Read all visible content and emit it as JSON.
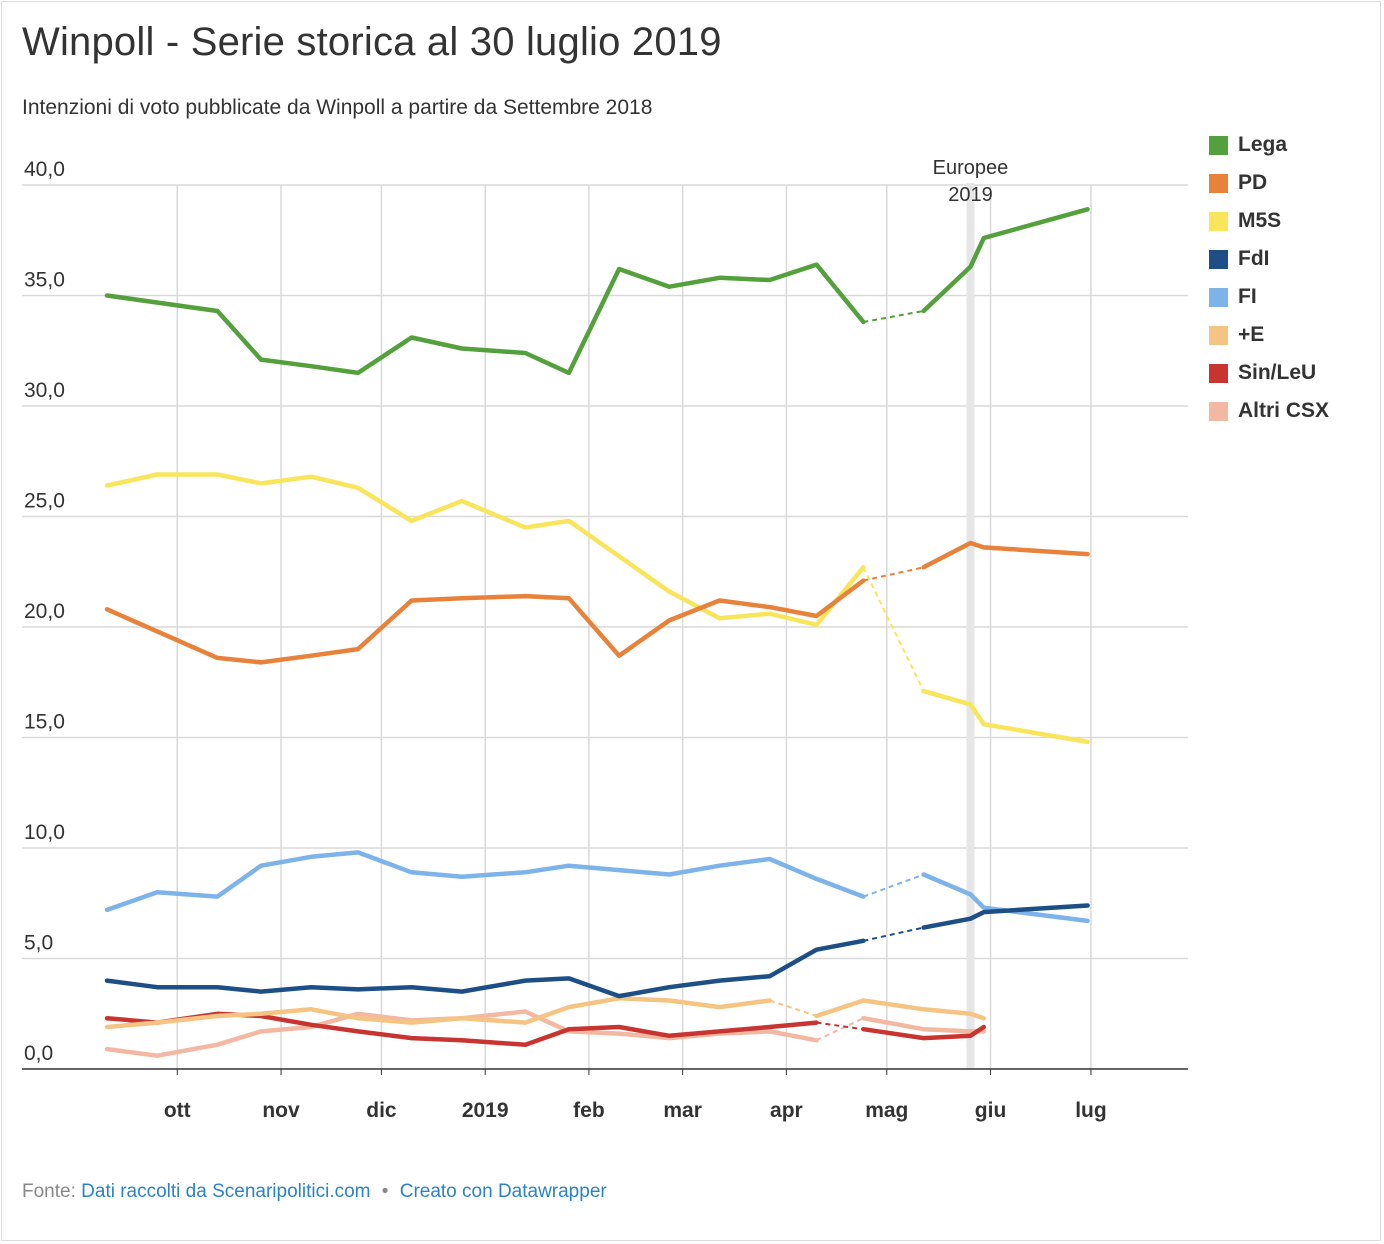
{
  "title": "Winpoll - Serie storica al 30 luglio 2019",
  "subtitle": "Intenzioni di voto pubblicate da Winpoll a partire da Settembre 2018",
  "footer": {
    "source_prefix": "Fonte:",
    "source_link": "Dati raccolti da Scenaripolitici.com",
    "separator": "•",
    "made_with": "Creato con Datawrapper"
  },
  "chart_data": {
    "type": "line",
    "title": "Winpoll - Serie storica al 30 luglio 2019",
    "subtitle": "Intenzioni di voto pubblicate da Winpoll a partire da Settembre 2018",
    "ylim": [
      0,
      40
    ],
    "yticks": [
      0,
      5,
      10,
      15,
      20,
      25,
      30,
      35,
      40
    ],
    "ytick_labels": [
      "0,0",
      "5,0",
      "10,0",
      "15,0",
      "20,0",
      "25,0",
      "30,0",
      "35,0",
      "40,0"
    ],
    "xlim": [
      "2018-09-10",
      "2019-07-30"
    ],
    "xticks": [
      {
        "date": "2018-10-01",
        "label": "ott"
      },
      {
        "date": "2018-11-01",
        "label": "nov"
      },
      {
        "date": "2018-12-01",
        "label": "dic"
      },
      {
        "date": "2019-01-01",
        "label": "2019"
      },
      {
        "date": "2019-02-01",
        "label": "feb"
      },
      {
        "date": "2019-03-01",
        "label": "mar"
      },
      {
        "date": "2019-04-01",
        "label": "apr"
      },
      {
        "date": "2019-05-01",
        "label": "mag"
      },
      {
        "date": "2019-06-01",
        "label": "giu"
      },
      {
        "date": "2019-07-01",
        "label": "lug"
      }
    ],
    "grid": true,
    "legend_position": "right",
    "annotation": {
      "label_line1": "Europee",
      "label_line2": "2019",
      "date": "2019-05-26"
    },
    "dates": [
      "2018-09-10",
      "2018-09-25",
      "2018-10-13",
      "2018-10-26",
      "2018-11-10",
      "2018-11-24",
      "2018-12-10",
      "2018-12-25",
      "2019-01-13",
      "2019-01-26",
      "2019-02-10",
      "2019-02-25",
      "2019-03-12",
      "2019-03-27",
      "2019-04-10",
      "2019-04-24",
      "2019-05-12",
      "2019-05-26",
      "2019-05-30",
      "2019-06-30",
      "2019-07-30"
    ],
    "series": [
      {
        "name": "Lega",
        "color": "#54a03c",
        "values": [
          35.0,
          null,
          34.3,
          32.1,
          31.8,
          31.5,
          33.1,
          32.6,
          32.4,
          31.5,
          36.2,
          35.4,
          35.8,
          35.7,
          36.4,
          33.8,
          34.3,
          36.3,
          37.6,
          38.9,
          null
        ],
        "connect_break": [
          15,
          16
        ]
      },
      {
        "name": "PD",
        "color": "#e8823b",
        "values": [
          20.8,
          19.8,
          18.6,
          18.4,
          18.7,
          19.0,
          21.2,
          21.3,
          21.4,
          21.3,
          18.7,
          20.3,
          21.2,
          20.9,
          20.5,
          22.1,
          22.7,
          23.8,
          23.6,
          23.3,
          null
        ],
        "connect_break": [
          15,
          16
        ]
      },
      {
        "name": "M5S",
        "color": "#f8e55b",
        "values": [
          26.4,
          26.9,
          26.9,
          26.5,
          26.8,
          26.3,
          24.8,
          25.7,
          24.5,
          24.8,
          23.2,
          21.6,
          20.4,
          20.6,
          20.1,
          22.7,
          17.1,
          16.5,
          15.6,
          14.8,
          null
        ],
        "connect_break": [
          15,
          16
        ]
      },
      {
        "name": "FdI",
        "color": "#1d4f86",
        "values": [
          4.0,
          3.7,
          3.7,
          3.5,
          3.7,
          3.6,
          3.7,
          3.5,
          4.0,
          4.1,
          3.3,
          3.7,
          4.0,
          4.2,
          5.4,
          5.8,
          6.4,
          6.8,
          7.1,
          7.4,
          null
        ],
        "connect_break": [
          15,
          16
        ]
      },
      {
        "name": "FI",
        "color": "#7eb3ea",
        "values": [
          7.2,
          8.0,
          7.8,
          9.2,
          9.6,
          9.8,
          8.9,
          8.7,
          8.9,
          9.2,
          9.0,
          8.8,
          9.2,
          9.5,
          8.6,
          7.8,
          8.8,
          7.9,
          7.3,
          6.7,
          null
        ],
        "connect_break": [
          15,
          16
        ]
      },
      {
        "name": "+E",
        "color": "#f5c482",
        "values": [
          1.9,
          2.1,
          2.4,
          2.5,
          2.7,
          2.3,
          2.1,
          2.3,
          2.1,
          2.8,
          3.2,
          3.1,
          2.8,
          3.1,
          2.4,
          3.1,
          2.7,
          2.5,
          2.3,
          null,
          null
        ],
        "connect_break": [
          13,
          14
        ]
      },
      {
        "name": "Sin/LeU",
        "color": "#c83530",
        "values": [
          2.3,
          2.1,
          2.5,
          2.4,
          2.0,
          1.7,
          1.4,
          1.3,
          1.1,
          1.8,
          1.9,
          1.5,
          1.7,
          1.9,
          2.1,
          1.8,
          1.4,
          1.5,
          1.9,
          null,
          null
        ],
        "connect_break": [
          14,
          15
        ]
      },
      {
        "name": "Altri CSX",
        "color": "#f2b8a2",
        "values": [
          0.9,
          0.6,
          1.1,
          1.7,
          1.9,
          2.5,
          2.2,
          2.3,
          2.6,
          1.7,
          1.6,
          1.4,
          1.6,
          1.7,
          1.3,
          2.3,
          1.8,
          1.7,
          1.7,
          null,
          null
        ],
        "connect_break": [
          14,
          15
        ]
      }
    ]
  }
}
